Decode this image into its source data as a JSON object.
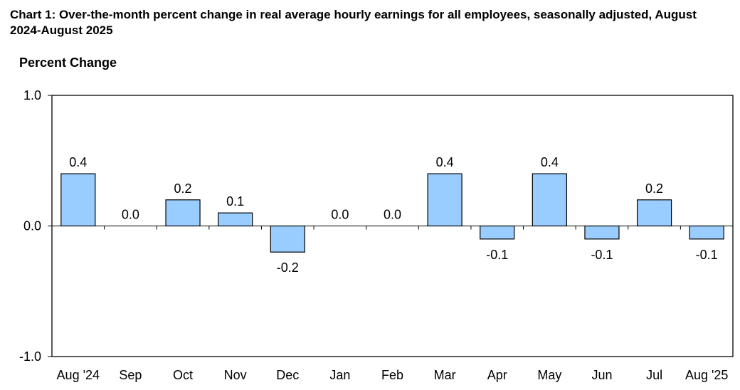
{
  "chart_data": {
    "type": "bar",
    "title": "Chart 1: Over-the-month percent change in real average hourly earnings for all employees, seasonally adjusted, August 2024-August 2025",
    "ylabel": "Percent Change",
    "xlabel": "",
    "categories": [
      "Aug '24",
      "Sep",
      "Oct",
      "Nov",
      "Dec",
      "Jan",
      "Feb",
      "Mar",
      "Apr",
      "May",
      "Jun",
      "Jul",
      "Aug '25"
    ],
    "values": [
      0.4,
      0.0,
      0.2,
      0.1,
      -0.2,
      0.0,
      0.0,
      0.4,
      -0.1,
      0.4,
      -0.1,
      0.2,
      -0.1
    ],
    "data_labels": [
      "0.4",
      "0.0",
      "0.2",
      "0.1",
      "-0.2",
      "0.0",
      "0.0",
      "0.4",
      "-0.1",
      "0.4",
      "-0.1",
      "0.2",
      "-0.1"
    ],
    "ylim": [
      -1.0,
      1.0
    ],
    "yticks": [
      "1.0",
      "0.0",
      "-1.0"
    ],
    "grid": false,
    "bar_color": "#99ccff",
    "bar_edge_color": "#000000"
  }
}
